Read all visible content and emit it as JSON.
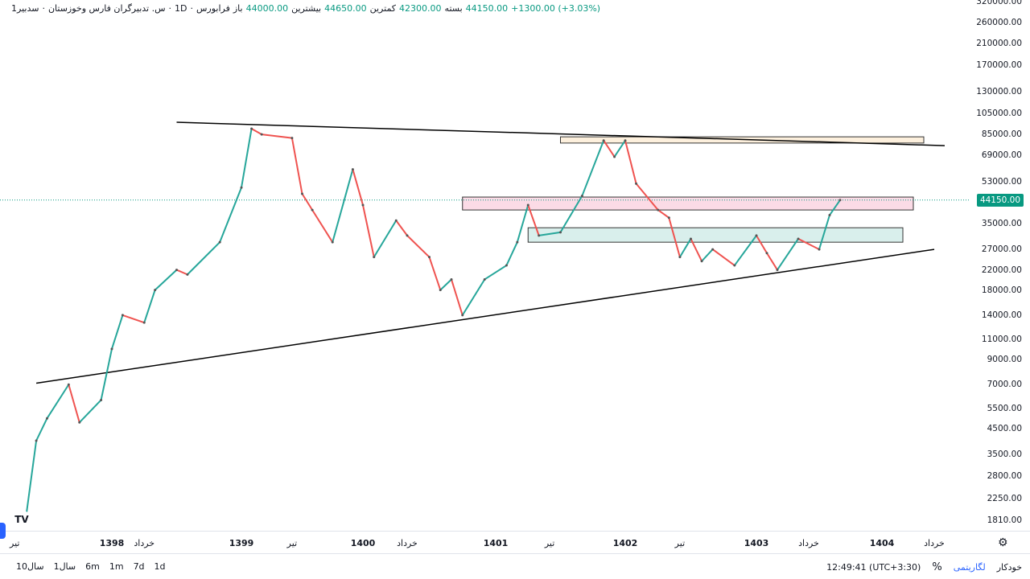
{
  "header": {
    "symbol": "سدبیر1",
    "name": "س. تدبیرگران فارس وخوزستان",
    "interval": "1D",
    "exchange": "فرابورس",
    "open_label": "باز",
    "open": "44000.00",
    "high_label": "بیشترین",
    "high": "44650.00",
    "low_label": "کمترین",
    "low": "42300.00",
    "close_label": "بسته",
    "close": "44150.00",
    "change": "+1300.00 (+3.03%)"
  },
  "price_axis": {
    "ticks": [
      "320000.00",
      "260000.00",
      "210000.00",
      "170000.00",
      "130000.00",
      "105000.00",
      "85000.00",
      "69000.00",
      "53000.00",
      "35000.00",
      "27000.00",
      "22000.00",
      "18000.00",
      "14000.00",
      "11000.00",
      "9000.00",
      "7000.00",
      "5500.00",
      "4500.00",
      "3500.00",
      "2800.00",
      "2250.00",
      "1810.00"
    ],
    "last_price": "44150.00",
    "scale": "log"
  },
  "time_axis": {
    "labels": [
      {
        "t": "تیر",
        "d": "1397/04",
        "year": false
      },
      {
        "t": "1398",
        "d": "1398/01",
        "year": true
      },
      {
        "t": "خرداد",
        "d": "1398/04",
        "year": false
      },
      {
        "t": "1399",
        "d": "1399/01",
        "year": true
      },
      {
        "t": "تیر",
        "d": "1399/06",
        "year": false
      },
      {
        "t": "1400",
        "d": "1400/01",
        "year": true
      },
      {
        "t": "خرداد",
        "d": "1400/05",
        "year": false
      },
      {
        "t": "1401",
        "d": "1401/01",
        "year": true
      },
      {
        "t": "تیر",
        "d": "1401/06",
        "year": false
      },
      {
        "t": "1402",
        "d": "1402/01",
        "year": true
      },
      {
        "t": "تیر",
        "d": "1402/06",
        "year": false
      },
      {
        "t": "1403",
        "d": "1403/01",
        "year": true
      },
      {
        "t": "خرداد",
        "d": "1403/06",
        "year": false
      },
      {
        "t": "1404",
        "d": "1404/01",
        "year": true
      },
      {
        "t": "خرداد",
        "d": "1404/06",
        "year": false
      }
    ]
  },
  "toolbar": {
    "ranges": [
      "1d",
      "7d",
      "1m",
      "6m",
      "1سال",
      "10سال"
    ],
    "time": "12:49:41 (UTC+3:30)",
    "percent": "%",
    "log": "لگاریتمی",
    "auto": "خودکار"
  },
  "logo": "TV",
  "chart_data": {
    "type": "line",
    "title": "",
    "xlabel": "",
    "ylabel": "",
    "yscale": "log",
    "ylim": [
      1810,
      320000
    ],
    "grid": false,
    "colors": {
      "up": "#26a69a",
      "down": "#ef5350",
      "last": "#089981"
    },
    "series": [
      {
        "points": [
          [
            "1397/05",
            1800
          ],
          [
            "1397/06",
            4000
          ],
          [
            "1397/07",
            5000
          ],
          [
            "1397/09",
            7000
          ],
          [
            "1397/10",
            4800
          ],
          [
            "1397/12",
            6000
          ],
          [
            "1398/01",
            10000
          ],
          [
            "1398/02",
            14000
          ],
          [
            "1398/04",
            13000
          ],
          [
            "1398/05",
            18000
          ],
          [
            "1398/07",
            22000
          ],
          [
            "1398/08",
            21000
          ],
          [
            "1398/11",
            29000
          ],
          [
            "1399/01",
            50000
          ],
          [
            "1399/02",
            90000
          ],
          [
            "1399/03",
            85000
          ],
          [
            "1399/06",
            82000
          ],
          [
            "1399/07",
            47000
          ],
          [
            "1399/08",
            40000
          ],
          [
            "1399/10",
            29000
          ],
          [
            "1399/12",
            60000
          ],
          [
            "1400/01",
            42000
          ],
          [
            "1400/02",
            25000
          ],
          [
            "1400/04",
            36000
          ],
          [
            "1400/05",
            31000
          ],
          [
            "1400/07",
            25000
          ],
          [
            "1400/08",
            18000
          ],
          [
            "1400/09",
            20000
          ],
          [
            "1400/10",
            14000
          ],
          [
            "1400/12",
            20000
          ],
          [
            "1401/02",
            23000
          ],
          [
            "1401/03",
            29000
          ],
          [
            "1401/04",
            42000
          ],
          [
            "1401/05",
            31000
          ],
          [
            "1401/07",
            32000
          ],
          [
            "1401/09",
            46000
          ],
          [
            "1401/11",
            80000
          ],
          [
            "1401/12",
            68000
          ],
          [
            "1402/01",
            80000
          ],
          [
            "1402/02",
            52000
          ],
          [
            "1402/04",
            40000
          ],
          [
            "1402/05",
            37000
          ],
          [
            "1402/06",
            25000
          ],
          [
            "1402/07",
            30000
          ],
          [
            "1402/08",
            24000
          ],
          [
            "1402/09",
            27000
          ],
          [
            "1402/11",
            23000
          ],
          [
            "1403/01",
            31000
          ],
          [
            "1403/02",
            26000
          ],
          [
            "1403/03",
            22000
          ],
          [
            "1403/05",
            30000
          ],
          [
            "1403/07",
            27000
          ],
          [
            "1403/08",
            38000
          ],
          [
            "1403/09",
            44150
          ]
        ]
      }
    ],
    "trendlines": [
      {
        "from": [
          "1398/07",
          96000
        ],
        "to": [
          "1404/07",
          76000
        ]
      },
      {
        "from": [
          "1397/06",
          7100
        ],
        "to": [
          "1404/06",
          27000
        ]
      }
    ],
    "zones": [
      {
        "from": "1401/07",
        "to": "1404/05",
        "low": 78000,
        "high": 83000,
        "fill": "#fdf0dd"
      },
      {
        "from": "1400/10",
        "to": "1404/04",
        "low": 40000,
        "high": 45500,
        "fill": "#fbdbe6"
      },
      {
        "from": "1401/04",
        "to": "1404/03",
        "low": 29000,
        "high": 33500,
        "fill": "#d9efec"
      }
    ]
  }
}
